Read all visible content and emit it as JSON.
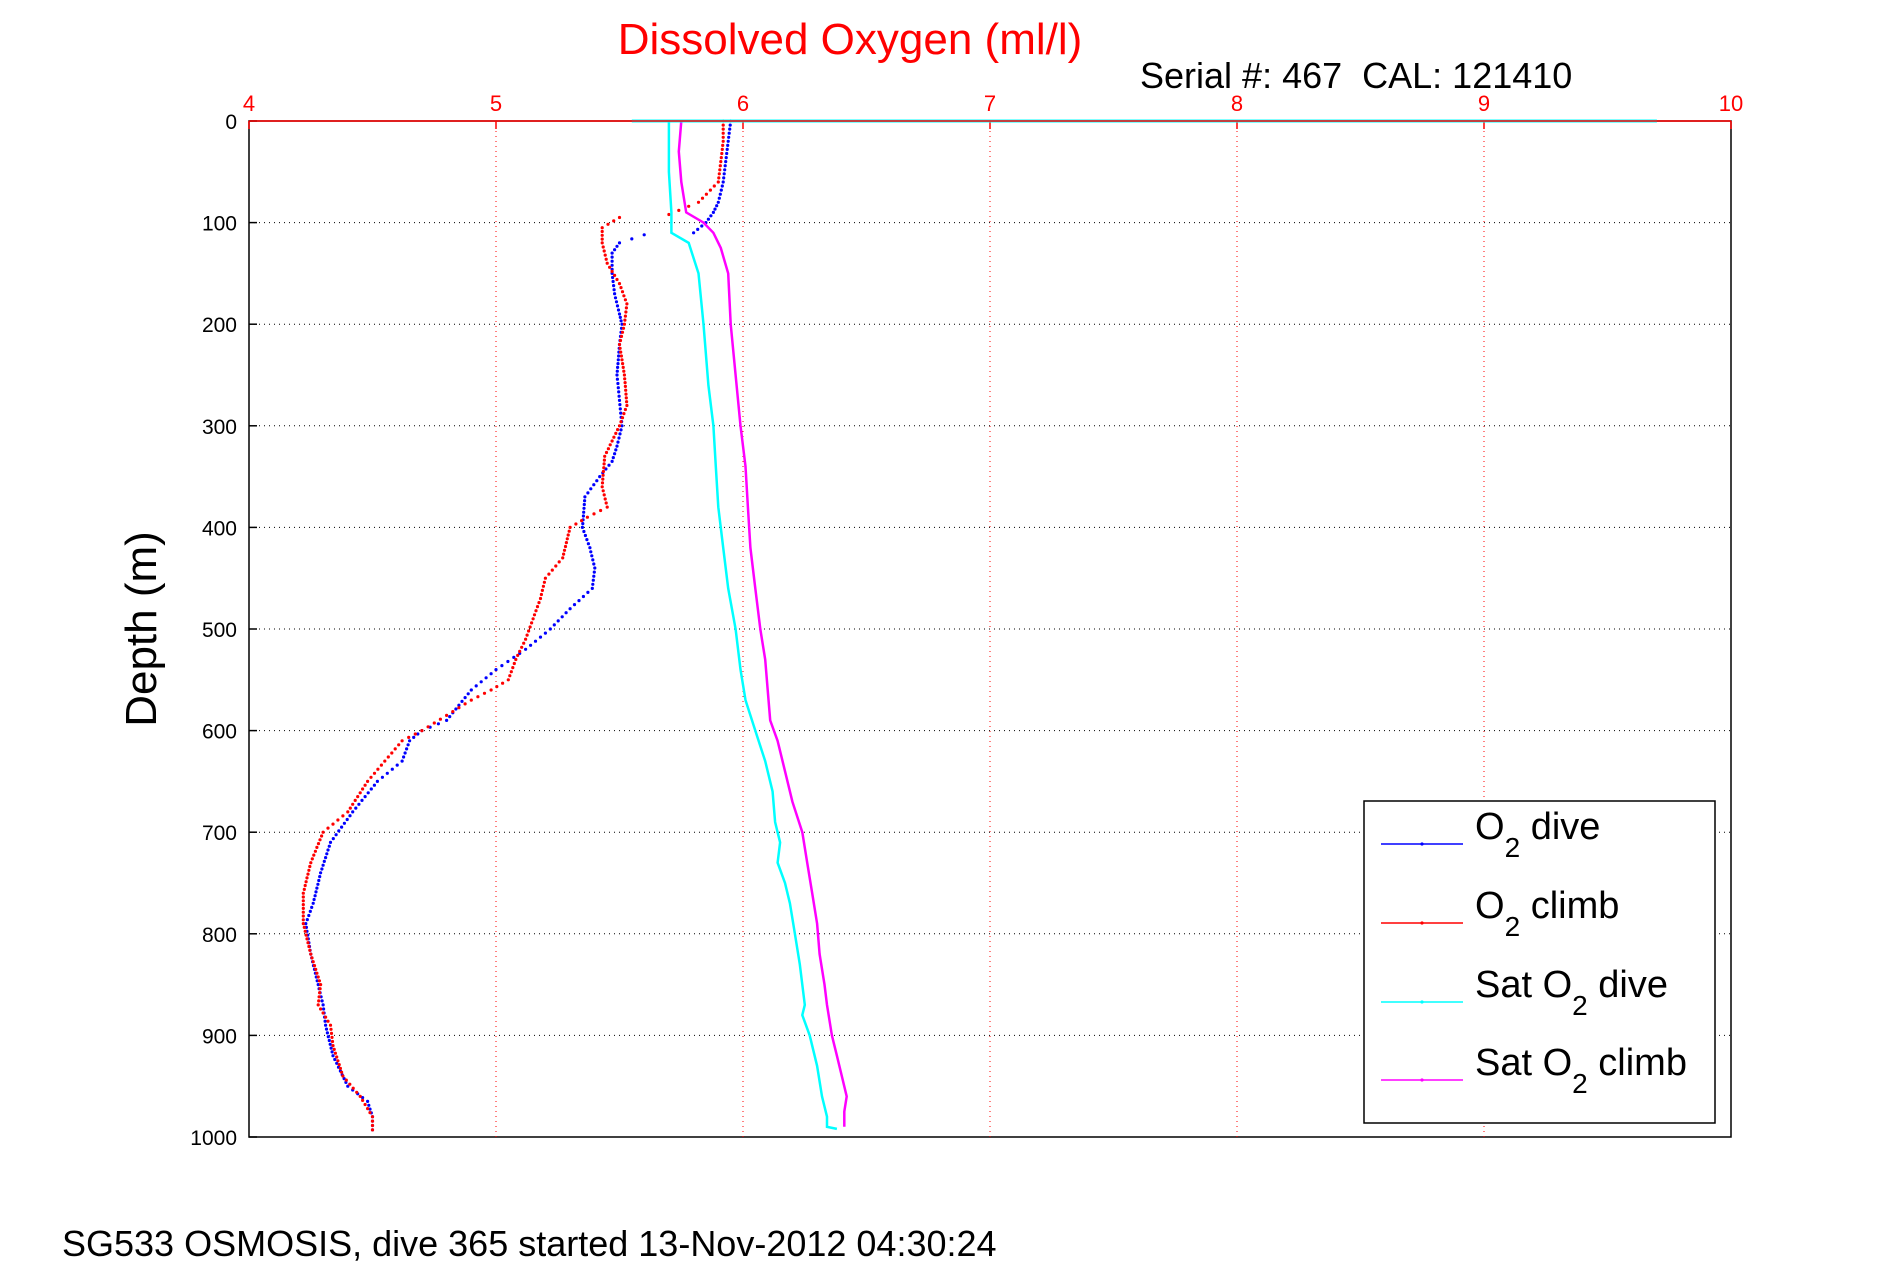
{
  "chart_data": {
    "type": "scatter",
    "title": "Dissolved Oxygen (ml/l)",
    "subtitle": "Serial #: 467  CAL: 121410",
    "ylabel": "Depth (m)",
    "footer": "SG533 OSMOSIS, dive 365 started 13-Nov-2012 04:30:24",
    "xlim": [
      4,
      10
    ],
    "ylim": [
      0,
      1000
    ],
    "y_reversed": true,
    "x_axis_position": "top",
    "grid": true,
    "x_ticks": [
      "4",
      "5",
      "6",
      "7",
      "8",
      "9",
      "10"
    ],
    "y_ticks": [
      "0",
      "100",
      "200",
      "300",
      "400",
      "500",
      "600",
      "700",
      "800",
      "900",
      "1000"
    ],
    "legend": {
      "placement": "bottom-right",
      "entries": [
        {
          "main": "O",
          "sub": "2",
          "rest": " dive"
        },
        {
          "main": "O",
          "sub": "2",
          "rest": " climb"
        },
        {
          "main": "Sat O",
          "sub": "2",
          "rest": " dive"
        },
        {
          "main": "Sat O",
          "sub": "2",
          "rest": " climb"
        }
      ]
    },
    "series": [
      {
        "color": "#0000ff",
        "style": "dots",
        "points": [
          [
            5.95,
            0
          ],
          [
            5.94,
            20
          ],
          [
            5.93,
            40
          ],
          [
            5.92,
            60
          ],
          [
            5.9,
            80
          ],
          [
            5.88,
            90
          ],
          [
            5.85,
            100
          ],
          [
            5.8,
            110
          ],
          [
            5.6,
            112
          ],
          [
            5.5,
            120
          ],
          [
            5.47,
            130
          ],
          [
            5.47,
            150
          ],
          [
            5.48,
            170
          ],
          [
            5.5,
            190
          ],
          [
            5.51,
            200
          ],
          [
            5.5,
            220
          ],
          [
            5.49,
            250
          ],
          [
            5.5,
            275
          ],
          [
            5.51,
            300
          ],
          [
            5.49,
            320
          ],
          [
            5.47,
            335
          ],
          [
            5.42,
            350
          ],
          [
            5.36,
            370
          ],
          [
            5.35,
            400
          ],
          [
            5.38,
            420
          ],
          [
            5.4,
            440
          ],
          [
            5.39,
            460
          ],
          [
            5.3,
            480
          ],
          [
            5.22,
            500
          ],
          [
            5.12,
            520
          ],
          [
            5.0,
            540
          ],
          [
            4.9,
            560
          ],
          [
            4.85,
            575
          ],
          [
            4.8,
            590
          ],
          [
            4.7,
            600
          ],
          [
            4.65,
            610
          ],
          [
            4.62,
            630
          ],
          [
            4.52,
            650
          ],
          [
            4.42,
            680
          ],
          [
            4.33,
            710
          ],
          [
            4.29,
            740
          ],
          [
            4.26,
            770
          ],
          [
            4.23,
            790
          ],
          [
            4.25,
            820
          ],
          [
            4.28,
            850
          ],
          [
            4.3,
            870
          ],
          [
            4.31,
            890
          ],
          [
            4.34,
            920
          ],
          [
            4.4,
            950
          ],
          [
            4.48,
            965
          ],
          [
            4.5,
            980
          ],
          [
            4.5,
            993
          ]
        ]
      },
      {
        "color": "#ff0000",
        "style": "dots",
        "points": [
          [
            5.92,
            0
          ],
          [
            5.92,
            20
          ],
          [
            5.91,
            40
          ],
          [
            5.9,
            60
          ],
          [
            5.82,
            80
          ],
          [
            5.7,
            92
          ],
          [
            5.5,
            95
          ],
          [
            5.43,
            105
          ],
          [
            5.43,
            120
          ],
          [
            5.45,
            140
          ],
          [
            5.5,
            160
          ],
          [
            5.53,
            180
          ],
          [
            5.52,
            200
          ],
          [
            5.5,
            220
          ],
          [
            5.52,
            250
          ],
          [
            5.53,
            280
          ],
          [
            5.5,
            300
          ],
          [
            5.44,
            330
          ],
          [
            5.43,
            360
          ],
          [
            5.45,
            380
          ],
          [
            5.37,
            390
          ],
          [
            5.3,
            400
          ],
          [
            5.27,
            430
          ],
          [
            5.2,
            450
          ],
          [
            5.18,
            470
          ],
          [
            5.15,
            490
          ],
          [
            5.12,
            510
          ],
          [
            5.08,
            530
          ],
          [
            5.05,
            550
          ],
          [
            4.98,
            560
          ],
          [
            4.9,
            570
          ],
          [
            4.8,
            585
          ],
          [
            4.7,
            600
          ],
          [
            4.62,
            610
          ],
          [
            4.55,
            630
          ],
          [
            4.48,
            650
          ],
          [
            4.4,
            680
          ],
          [
            4.3,
            700
          ],
          [
            4.25,
            730
          ],
          [
            4.22,
            760
          ],
          [
            4.22,
            790
          ],
          [
            4.25,
            820
          ],
          [
            4.29,
            850
          ],
          [
            4.28,
            870
          ],
          [
            4.33,
            890
          ],
          [
            4.34,
            910
          ],
          [
            4.38,
            940
          ],
          [
            4.45,
            960
          ],
          [
            4.5,
            980
          ],
          [
            4.5,
            993
          ]
        ]
      },
      {
        "color": "#00ffff",
        "style": "line",
        "points": [
          [
            5.7,
            0
          ],
          [
            5.7,
            50
          ],
          [
            5.71,
            90
          ],
          [
            5.71,
            110
          ],
          [
            5.78,
            120
          ],
          [
            5.82,
            150
          ],
          [
            5.84,
            200
          ],
          [
            5.86,
            260
          ],
          [
            5.88,
            300
          ],
          [
            5.89,
            340
          ],
          [
            5.9,
            380
          ],
          [
            5.92,
            420
          ],
          [
            5.94,
            460
          ],
          [
            5.97,
            500
          ],
          [
            5.99,
            540
          ],
          [
            6.01,
            570
          ],
          [
            6.05,
            600
          ],
          [
            6.09,
            630
          ],
          [
            6.12,
            660
          ],
          [
            6.13,
            690
          ],
          [
            6.15,
            710
          ],
          [
            6.14,
            730
          ],
          [
            6.17,
            750
          ],
          [
            6.19,
            770
          ],
          [
            6.21,
            800
          ],
          [
            6.23,
            830
          ],
          [
            6.24,
            850
          ],
          [
            6.25,
            870
          ],
          [
            6.24,
            880
          ],
          [
            6.27,
            900
          ],
          [
            6.3,
            930
          ],
          [
            6.32,
            960
          ],
          [
            6.34,
            980
          ],
          [
            6.34,
            990
          ],
          [
            6.38,
            992
          ]
        ]
      },
      {
        "color": "#ff00ff",
        "style": "line",
        "points": [
          [
            5.75,
            0
          ],
          [
            5.74,
            30
          ],
          [
            5.75,
            60
          ],
          [
            5.77,
            90
          ],
          [
            5.84,
            100
          ],
          [
            5.88,
            110
          ],
          [
            5.91,
            125
          ],
          [
            5.94,
            150
          ],
          [
            5.95,
            200
          ],
          [
            5.97,
            250
          ],
          [
            5.99,
            300
          ],
          [
            6.01,
            340
          ],
          [
            6.02,
            380
          ],
          [
            6.03,
            420
          ],
          [
            6.05,
            460
          ],
          [
            6.07,
            500
          ],
          [
            6.09,
            530
          ],
          [
            6.1,
            560
          ],
          [
            6.11,
            590
          ],
          [
            6.14,
            610
          ],
          [
            6.17,
            640
          ],
          [
            6.2,
            670
          ],
          [
            6.24,
            700
          ],
          [
            6.26,
            730
          ],
          [
            6.28,
            760
          ],
          [
            6.3,
            790
          ],
          [
            6.31,
            820
          ],
          [
            6.33,
            850
          ],
          [
            6.34,
            870
          ],
          [
            6.36,
            900
          ],
          [
            6.38,
            920
          ],
          [
            6.4,
            940
          ],
          [
            6.42,
            960
          ],
          [
            6.41,
            975
          ],
          [
            6.41,
            990
          ]
        ]
      },
      {
        "color": "#00ffff",
        "style": "surface-line",
        "points": [
          [
            5.55,
            0
          ],
          [
            9.7,
            0
          ]
        ]
      }
    ]
  }
}
